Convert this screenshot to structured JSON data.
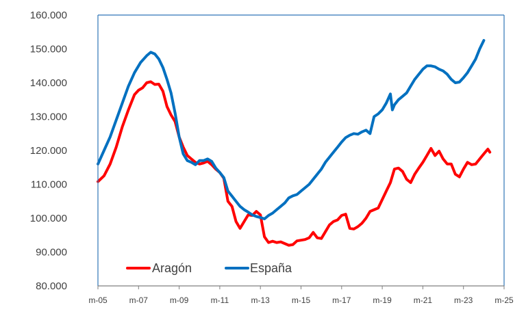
{
  "chart_data": {
    "type": "line",
    "title": "",
    "xlabel": "",
    "ylabel": "",
    "ylim": [
      80000,
      160000
    ],
    "yticks": [
      "80.000",
      "90.000",
      "100.000",
      "110.000",
      "120.000",
      "130.000",
      "140.000",
      "150.000",
      "160.000"
    ],
    "xticks": [
      "m-05",
      "m-07",
      "m-09",
      "m-11",
      "m-13",
      "m-15",
      "m-17",
      "m-19",
      "m-21",
      "m-23",
      "m-25"
    ],
    "x_unit": "years since 2005",
    "grid": false,
    "legend_position": "bottom-left",
    "series": [
      {
        "name": "Aragón",
        "color": "#ff0000",
        "points": [
          [
            0.0,
            110800
          ],
          [
            0.3,
            112500
          ],
          [
            0.6,
            116000
          ],
          [
            0.9,
            121000
          ],
          [
            1.2,
            127000
          ],
          [
            1.5,
            132000
          ],
          [
            1.8,
            136500
          ],
          [
            2.0,
            137800
          ],
          [
            2.2,
            138500
          ],
          [
            2.4,
            140000
          ],
          [
            2.6,
            140300
          ],
          [
            2.8,
            139500
          ],
          [
            3.0,
            139600
          ],
          [
            3.2,
            137500
          ],
          [
            3.4,
            133000
          ],
          [
            3.6,
            130500
          ],
          [
            3.8,
            128500
          ],
          [
            4.0,
            124000
          ],
          [
            4.2,
            121000
          ],
          [
            4.4,
            118500
          ],
          [
            4.6,
            117500
          ],
          [
            4.8,
            116500
          ],
          [
            5.0,
            116000
          ],
          [
            5.2,
            116300
          ],
          [
            5.4,
            116800
          ],
          [
            5.6,
            115800
          ],
          [
            5.8,
            114500
          ],
          [
            6.0,
            113500
          ],
          [
            6.2,
            111800
          ],
          [
            6.4,
            105000
          ],
          [
            6.6,
            103500
          ],
          [
            6.8,
            99000
          ],
          [
            7.0,
            97000
          ],
          [
            7.2,
            99000
          ],
          [
            7.4,
            101000
          ],
          [
            7.6,
            100800
          ],
          [
            7.8,
            102000
          ],
          [
            8.0,
            101000
          ],
          [
            8.2,
            94500
          ],
          [
            8.4,
            92800
          ],
          [
            8.6,
            93200
          ],
          [
            8.8,
            92800
          ],
          [
            9.0,
            93000
          ],
          [
            9.2,
            92500
          ],
          [
            9.4,
            92000
          ],
          [
            9.6,
            92200
          ],
          [
            9.8,
            93300
          ],
          [
            10.0,
            93500
          ],
          [
            10.2,
            93700
          ],
          [
            10.4,
            94200
          ],
          [
            10.6,
            95800
          ],
          [
            10.8,
            94200
          ],
          [
            11.0,
            94000
          ],
          [
            11.2,
            96000
          ],
          [
            11.4,
            98000
          ],
          [
            11.6,
            99000
          ],
          [
            11.8,
            99500
          ],
          [
            12.0,
            100800
          ],
          [
            12.2,
            101200
          ],
          [
            12.4,
            97000
          ],
          [
            12.6,
            96800
          ],
          [
            12.8,
            97500
          ],
          [
            13.0,
            98500
          ],
          [
            13.2,
            100000
          ],
          [
            13.4,
            102000
          ],
          [
            13.6,
            102500
          ],
          [
            13.8,
            103000
          ],
          [
            14.0,
            105500
          ],
          [
            14.2,
            108000
          ],
          [
            14.4,
            110500
          ],
          [
            14.6,
            114500
          ],
          [
            14.8,
            114800
          ],
          [
            15.0,
            113800
          ],
          [
            15.2,
            111500
          ],
          [
            15.4,
            110500
          ],
          [
            15.6,
            113000
          ],
          [
            15.8,
            114800
          ],
          [
            16.0,
            116500
          ],
          [
            16.2,
            118500
          ],
          [
            16.4,
            120600
          ],
          [
            16.6,
            118500
          ],
          [
            16.8,
            119800
          ],
          [
            17.0,
            117500
          ],
          [
            17.2,
            116000
          ],
          [
            17.4,
            116000
          ],
          [
            17.6,
            113000
          ],
          [
            17.8,
            112200
          ],
          [
            18.0,
            114500
          ],
          [
            18.2,
            116500
          ],
          [
            18.4,
            115800
          ],
          [
            18.6,
            116000
          ],
          [
            18.8,
            117500
          ],
          [
            19.0,
            119000
          ],
          [
            19.2,
            120400
          ],
          [
            19.3,
            119500
          ]
        ]
      },
      {
        "name": "España",
        "color": "#0070c0",
        "points": [
          [
            0.0,
            116000
          ],
          [
            0.3,
            120000
          ],
          [
            0.6,
            124000
          ],
          [
            0.9,
            129000
          ],
          [
            1.2,
            134000
          ],
          [
            1.5,
            139000
          ],
          [
            1.8,
            143000
          ],
          [
            2.1,
            146000
          ],
          [
            2.4,
            148000
          ],
          [
            2.6,
            149000
          ],
          [
            2.8,
            148500
          ],
          [
            3.0,
            147000
          ],
          [
            3.2,
            144500
          ],
          [
            3.4,
            141000
          ],
          [
            3.6,
            137000
          ],
          [
            3.8,
            131000
          ],
          [
            4.0,
            124000
          ],
          [
            4.2,
            119000
          ],
          [
            4.4,
            117000
          ],
          [
            4.6,
            116500
          ],
          [
            4.8,
            115800
          ],
          [
            5.0,
            117000
          ],
          [
            5.2,
            117000
          ],
          [
            5.4,
            117500
          ],
          [
            5.6,
            116800
          ],
          [
            5.8,
            114800
          ],
          [
            6.0,
            113500
          ],
          [
            6.2,
            112000
          ],
          [
            6.4,
            108000
          ],
          [
            6.6,
            106500
          ],
          [
            6.8,
            105000
          ],
          [
            7.0,
            103500
          ],
          [
            7.2,
            102500
          ],
          [
            7.4,
            101800
          ],
          [
            7.6,
            101000
          ],
          [
            7.8,
            100500
          ],
          [
            8.0,
            100200
          ],
          [
            8.2,
            99800
          ],
          [
            8.4,
            100800
          ],
          [
            8.6,
            101500
          ],
          [
            8.8,
            102500
          ],
          [
            9.0,
            103500
          ],
          [
            9.2,
            104500
          ],
          [
            9.4,
            106000
          ],
          [
            9.6,
            106600
          ],
          [
            9.8,
            107000
          ],
          [
            10.0,
            108000
          ],
          [
            10.2,
            109000
          ],
          [
            10.4,
            110000
          ],
          [
            10.6,
            111500
          ],
          [
            10.8,
            113000
          ],
          [
            11.0,
            114500
          ],
          [
            11.2,
            116500
          ],
          [
            11.4,
            118000
          ],
          [
            11.6,
            119500
          ],
          [
            11.8,
            121000
          ],
          [
            12.0,
            122500
          ],
          [
            12.2,
            123800
          ],
          [
            12.4,
            124500
          ],
          [
            12.6,
            125000
          ],
          [
            12.8,
            124800
          ],
          [
            13.0,
            125500
          ],
          [
            13.2,
            126000
          ],
          [
            13.4,
            125000
          ],
          [
            13.6,
            130000
          ],
          [
            13.8,
            130800
          ],
          [
            14.0,
            132000
          ],
          [
            14.2,
            134000
          ],
          [
            14.4,
            136700
          ],
          [
            14.5,
            132000
          ],
          [
            14.6,
            133500
          ],
          [
            14.8,
            135000
          ],
          [
            15.0,
            136000
          ],
          [
            15.2,
            137000
          ],
          [
            15.4,
            139000
          ],
          [
            15.6,
            141000
          ],
          [
            15.8,
            142500
          ],
          [
            16.0,
            144000
          ],
          [
            16.2,
            145000
          ],
          [
            16.4,
            145000
          ],
          [
            16.6,
            144700
          ],
          [
            16.8,
            144000
          ],
          [
            17.0,
            143500
          ],
          [
            17.2,
            142500
          ],
          [
            17.4,
            141000
          ],
          [
            17.6,
            140000
          ],
          [
            17.8,
            140200
          ],
          [
            18.0,
            141500
          ],
          [
            18.2,
            143000
          ],
          [
            18.4,
            145000
          ],
          [
            18.6,
            147000
          ],
          [
            18.8,
            150000
          ],
          [
            19.0,
            152500
          ]
        ]
      }
    ]
  }
}
